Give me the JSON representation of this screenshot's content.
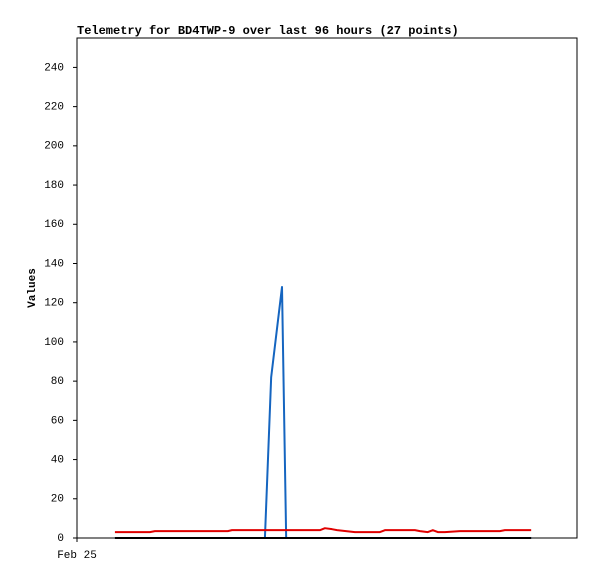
{
  "chart_data": {
    "type": "line",
    "title": "Telemetry for BD4TWP-9 over last 96 hours (27 points)",
    "y_label": "Values",
    "x": [
      9.1,
      17.5,
      18.7,
      27.1,
      36.2,
      37.2,
      45.1,
      46.6,
      49.2,
      50.2,
      58.3,
      59.5,
      61.2,
      62.4,
      66.7,
      72.7,
      73.9,
      81.1,
      82.3,
      84.2,
      85.4,
      86.6,
      88.3,
      91.9,
      101.5,
      102.7,
      109.0
    ],
    "series": [
      {
        "color": "#1565c0",
        "values": [
          0,
          0,
          0,
          0,
          0,
          0,
          0,
          82,
          128,
          0,
          0,
          0,
          0,
          0,
          0,
          0,
          0,
          0,
          0,
          0,
          0,
          0,
          0,
          0,
          0,
          0,
          0
        ]
      },
      {
        "color": "#e00000",
        "values": [
          3,
          3,
          3.5,
          3.5,
          3.5,
          4,
          4,
          4,
          4,
          4,
          4,
          5,
          4.5,
          4,
          3,
          3,
          4,
          4,
          3.5,
          3,
          4,
          3,
          3,
          3.5,
          3.5,
          4,
          4
        ]
      },
      {
        "color": "#000000",
        "values": [
          0,
          0,
          0,
          0,
          0,
          0,
          0,
          0,
          0,
          0,
          0,
          0,
          0,
          0,
          0,
          0,
          0,
          0,
          0,
          0,
          0,
          0,
          0,
          0,
          0,
          0,
          0
        ]
      }
    ],
    "xlim": [
      0,
      120
    ],
    "xticks": [
      {
        "value": 0,
        "label": "Feb 25"
      }
    ],
    "ylim": [
      0,
      255
    ],
    "yticks": [
      0,
      20,
      40,
      60,
      80,
      100,
      120,
      140,
      160,
      180,
      200,
      220,
      240
    ],
    "grid": false
  }
}
